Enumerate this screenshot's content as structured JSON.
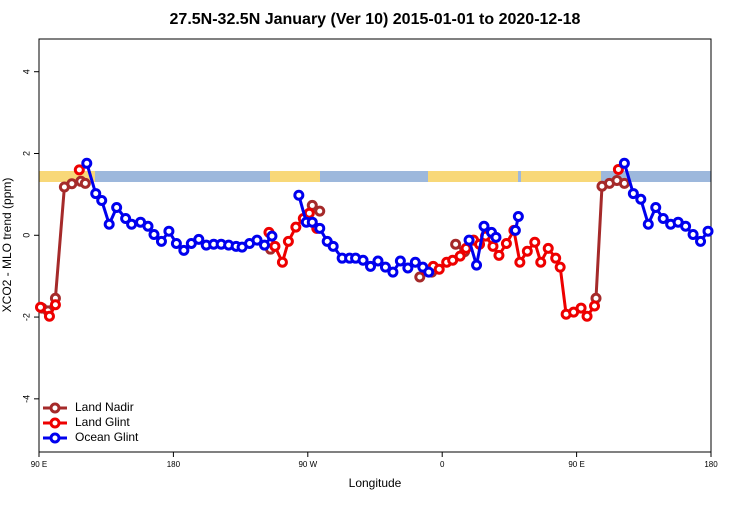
{
  "chart_data": {
    "type": "line",
    "title": "27.5N-32.5N January (Ver 10)   2015-01-01 to 2020-12-18",
    "x_label": "Longitude",
    "y_label": "XCO2 - MLO trend (ppm)",
    "xlim": [
      90,
      540
    ],
    "xticks": [
      {
        "value": 90,
        "label": "90 E"
      },
      180,
      {
        "value": 270,
        "label": "90 W"
      },
      {
        "value": 360,
        "label": "0"
      },
      {
        "value": 450,
        "label": "90 E"
      },
      {
        "value": 540,
        "label": "180"
      }
    ],
    "ylim": [
      -5.3,
      4.8
    ],
    "yticks": [
      -4,
      -2,
      0,
      2,
      4
    ],
    "legend_position": "bottom-left",
    "series": [
      {
        "name": "Land Nadir",
        "color": "#a52a2a",
        "x": [
          92,
          96,
          101,
          107,
          112,
          118,
          121,
          null,
          245,
          null,
          273,
          278,
          null,
          345,
          353,
          null,
          369,
          375,
          null,
          463,
          467,
          472,
          477,
          482
        ],
        "values": [
          -1.78,
          -1.85,
          -1.54,
          1.18,
          1.26,
          1.32,
          1.27,
          null,
          -0.34,
          null,
          0.73,
          0.59,
          null,
          -1.02,
          -0.9,
          null,
          -0.22,
          -0.4,
          null,
          -1.54,
          1.2,
          1.27,
          1.34,
          1.27
        ]
      },
      {
        "name": "Land Glint",
        "color": "#ee0000",
        "x": [
          91,
          97,
          101,
          null,
          117,
          null,
          244,
          248,
          253,
          257,
          262,
          267,
          271,
          276,
          null,
          349,
          354,
          358,
          363,
          367,
          372,
          376,
          381,
          385,
          389,
          394,
          398,
          403,
          408,
          412,
          417,
          422,
          426,
          431,
          436,
          439,
          443,
          448,
          453,
          457,
          462,
          null,
          478
        ],
        "values": [
          -1.76,
          -1.98,
          -1.7,
          null,
          1.6,
          null,
          0.07,
          -0.27,
          -0.66,
          -0.15,
          0.2,
          0.41,
          0.54,
          0.17,
          null,
          -0.85,
          -0.76,
          -0.83,
          -0.66,
          -0.61,
          -0.51,
          -0.32,
          -0.12,
          -0.22,
          -0.02,
          -0.27,
          -0.49,
          -0.2,
          0.12,
          -0.66,
          -0.39,
          -0.17,
          -0.66,
          -0.32,
          -0.56,
          -0.78,
          -1.93,
          -1.88,
          -1.78,
          -1.98,
          -1.73,
          null,
          1.61
        ]
      },
      {
        "name": "Ocean Glint",
        "color": "#0000ee",
        "x": [
          122,
          128,
          132,
          137,
          142,
          148,
          152,
          158,
          163,
          167,
          172,
          177,
          182,
          187,
          192,
          197,
          202,
          207,
          212,
          217,
          222,
          226,
          231,
          236,
          241,
          246,
          null,
          264,
          269,
          273,
          278,
          283,
          287,
          293,
          298,
          302,
          307,
          312,
          317,
          322,
          327,
          332,
          337,
          342,
          347,
          351,
          null,
          378,
          383,
          388,
          393,
          396,
          null,
          409,
          411,
          null,
          482,
          488,
          493,
          498,
          503,
          508,
          513,
          518,
          523,
          528,
          533,
          538
        ],
        "values": [
          1.76,
          1.02,
          0.85,
          0.27,
          0.68,
          0.41,
          0.27,
          0.32,
          0.22,
          0.02,
          -0.15,
          0.1,
          -0.2,
          -0.37,
          -0.2,
          -0.1,
          -0.24,
          -0.22,
          -0.22,
          -0.24,
          -0.27,
          -0.29,
          -0.2,
          -0.12,
          -0.24,
          -0.02,
          null,
          0.98,
          0.32,
          0.32,
          0.17,
          -0.15,
          -0.27,
          -0.56,
          -0.56,
          -0.56,
          -0.61,
          -0.76,
          -0.63,
          -0.78,
          -0.9,
          -0.63,
          -0.8,
          -0.66,
          -0.78,
          -0.9,
          null,
          -0.12,
          -0.73,
          0.22,
          0.07,
          -0.05,
          null,
          0.12,
          0.46,
          null,
          1.76,
          1.02,
          0.88,
          0.27,
          0.68,
          0.41,
          0.27,
          0.32,
          0.22,
          0.02,
          -0.15,
          0.1
        ]
      }
    ]
  }
}
